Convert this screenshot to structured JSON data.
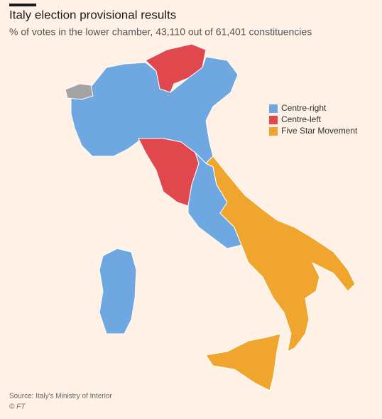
{
  "header": {
    "title": "Italy election provisional results",
    "subtitle": "% of votes in the lower chamber, 43,110 out of  61,401 constituencies"
  },
  "legend": [
    {
      "name": "Centre-right",
      "color": "#6fa8e0"
    },
    {
      "name": "Centre-left",
      "color": "#e0484e"
    },
    {
      "name": "Five Star Movement",
      "color": "#f0a62e"
    }
  ],
  "footer": {
    "source": "Source: Italy's Ministry of Interior",
    "credit": "© FT"
  }
}
